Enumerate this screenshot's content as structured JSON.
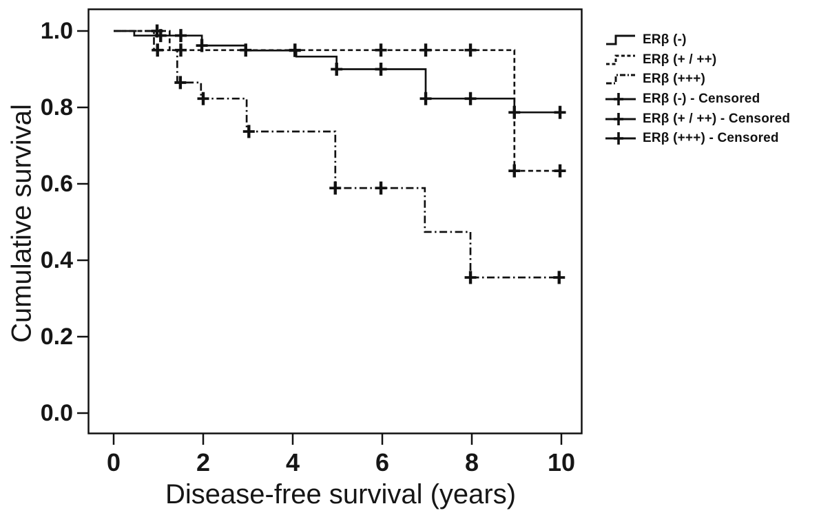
{
  "chart_data": {
    "type": "line",
    "subtype": "kaplan-meier-step",
    "title": "",
    "xlabel": "Disease-free survival (years)",
    "ylabel": "Cumulative survival",
    "xlim": [
      0,
      10
    ],
    "ylim": [
      0.0,
      1.0
    ],
    "grid": false,
    "legend_position": "right-outside",
    "x_ticks": [
      {
        "value": 0,
        "label": "0"
      },
      {
        "value": 2,
        "label": "2"
      },
      {
        "value": 4,
        "label": "4"
      },
      {
        "value": 6,
        "label": "6"
      },
      {
        "value": 8,
        "label": "8"
      },
      {
        "value": 10,
        "label": "10"
      }
    ],
    "y_ticks": [
      {
        "value": 1.0,
        "label": "1.0"
      },
      {
        "value": 0.8,
        "label": "0.8"
      },
      {
        "value": 0.6,
        "label": "0.6"
      },
      {
        "value": 0.4,
        "label": "0.4"
      },
      {
        "value": 0.2,
        "label": "0.2"
      },
      {
        "value": 0.0,
        "label": "0.0"
      }
    ],
    "series": [
      {
        "name": "ERβ (-)",
        "line_style": "solid",
        "color": "#111111",
        "points": [
          [
            0,
            1.0
          ],
          [
            0.46,
            1.0
          ],
          [
            0.46,
            0.988
          ],
          [
            1.97,
            0.988
          ],
          [
            1.97,
            0.962
          ],
          [
            2.95,
            0.962
          ],
          [
            2.95,
            0.949
          ],
          [
            4.08,
            0.949
          ],
          [
            4.08,
            0.933
          ],
          [
            4.98,
            0.933
          ],
          [
            4.98,
            0.9
          ],
          [
            6.97,
            0.9
          ],
          [
            6.97,
            0.823
          ],
          [
            8.95,
            0.823
          ],
          [
            8.95,
            0.787
          ],
          [
            10.08,
            0.787
          ]
        ],
        "censored": [
          [
            1.05,
            0.988
          ],
          [
            1.5,
            0.988
          ],
          [
            1.97,
            0.962
          ],
          [
            4.05,
            0.949
          ],
          [
            4.98,
            0.9
          ],
          [
            5.97,
            0.9
          ],
          [
            6.97,
            0.823
          ],
          [
            7.97,
            0.823
          ],
          [
            8.95,
            0.787
          ],
          [
            9.97,
            0.787
          ]
        ]
      },
      {
        "name": "ERβ (+ / ++)",
        "line_style": "dashed",
        "color": "#111111",
        "points": [
          [
            0,
            1.0
          ],
          [
            1.25,
            1.0
          ],
          [
            1.25,
            0.95
          ],
          [
            8.95,
            0.95
          ],
          [
            8.95,
            0.634
          ],
          [
            10.08,
            0.634
          ]
        ],
        "censored": [
          [
            0.97,
            1.0
          ],
          [
            1.5,
            0.95
          ],
          [
            2.95,
            0.95
          ],
          [
            4.05,
            0.95
          ],
          [
            5.97,
            0.95
          ],
          [
            6.97,
            0.95
          ],
          [
            7.97,
            0.95
          ],
          [
            8.95,
            0.634
          ],
          [
            9.97,
            0.634
          ]
        ]
      },
      {
        "name": "ERβ (+++)",
        "line_style": "dashdot",
        "color": "#111111",
        "points": [
          [
            0,
            1.0
          ],
          [
            0.9,
            1.0
          ],
          [
            0.9,
            0.95
          ],
          [
            1.42,
            0.95
          ],
          [
            1.42,
            0.865
          ],
          [
            1.95,
            0.865
          ],
          [
            1.95,
            0.823
          ],
          [
            2.97,
            0.823
          ],
          [
            2.97,
            0.737
          ],
          [
            4.95,
            0.737
          ],
          [
            4.95,
            0.589
          ],
          [
            6.95,
            0.589
          ],
          [
            6.95,
            0.474
          ],
          [
            7.97,
            0.474
          ],
          [
            7.97,
            0.355
          ],
          [
            10.0,
            0.355
          ]
        ],
        "censored": [
          [
            0.98,
            0.95
          ],
          [
            1.49,
            0.865
          ],
          [
            2.0,
            0.823
          ],
          [
            3.02,
            0.737
          ],
          [
            4.95,
            0.589
          ],
          [
            5.97,
            0.589
          ],
          [
            7.97,
            0.355
          ],
          [
            9.95,
            0.355
          ]
        ]
      }
    ],
    "legend": [
      {
        "label": "ERβ (-)",
        "glyph": "step-line",
        "line_style": "solid"
      },
      {
        "label": "ERβ (+ / ++)",
        "glyph": "step-line",
        "line_style": "dashed"
      },
      {
        "label": "ERβ (+++)",
        "glyph": "step-line",
        "line_style": "dashdot"
      },
      {
        "label": "ERβ (-) - Censored",
        "glyph": "censor-cross",
        "line_style": "solid"
      },
      {
        "label": "ERβ (+ / ++) - Censored",
        "glyph": "censor-cross",
        "line_style": "solid"
      },
      {
        "label": "ERβ (+++) - Censored",
        "glyph": "censor-cross",
        "line_style": "solid"
      }
    ],
    "colors": {
      "line": "#111111",
      "background": "#ffffff"
    }
  }
}
